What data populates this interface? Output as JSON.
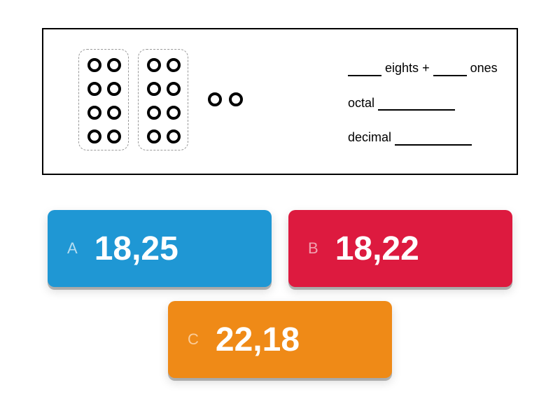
{
  "question": {
    "eights_label": "eights",
    "plus": "+",
    "ones_label": "ones",
    "octal_label": "octal",
    "decimal_label": "decimal",
    "groups_of_eight": 2,
    "loose_ones": 2,
    "blank_width_short": 48,
    "blank_width_long": 110,
    "circle_layout": {
      "rows": 4,
      "cols": 2,
      "x": [
        12,
        40
      ],
      "y": [
        12,
        46,
        80,
        114
      ]
    },
    "loose_positions": [
      235,
      265
    ]
  },
  "answers": [
    {
      "letter": "A",
      "value": "18,25",
      "bg": "#1f97d4",
      "letter_color": "#cfe9f6"
    },
    {
      "letter": "B",
      "value": "18,22",
      "bg": "#dd1a3f",
      "letter_color": "#f4b9c4"
    },
    {
      "letter": "C",
      "value": "22,18",
      "bg": "#ef8a17",
      "letter_color": "#fcd8b0"
    }
  ],
  "colors": {
    "border": "#000000",
    "background": "#ffffff"
  }
}
